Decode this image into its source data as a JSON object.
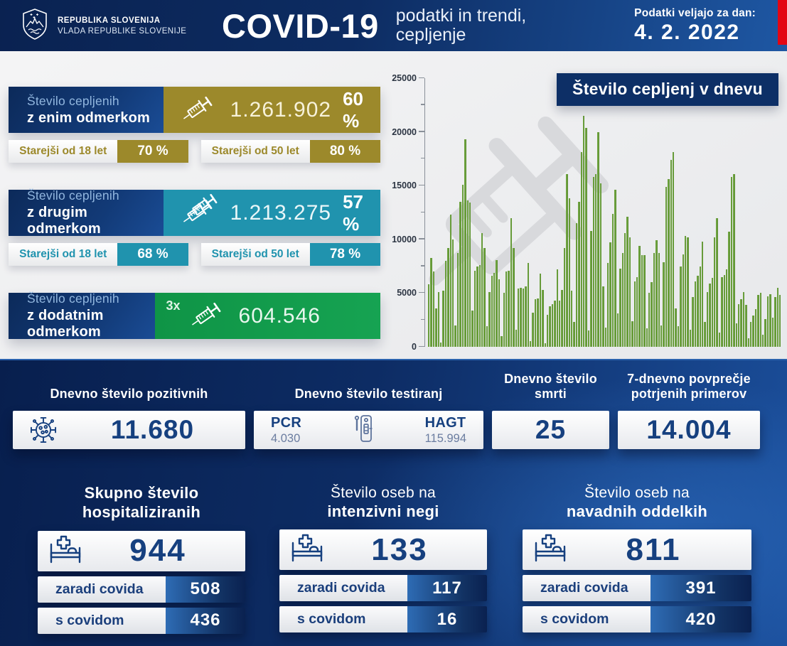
{
  "colors": {
    "navy_dark": "#0b2758",
    "navy": "#123f82",
    "blue_light": "#1b57a5",
    "gold": "#9c892b",
    "teal": "#2093ae",
    "green": "#129b48",
    "red_accent": "#e30613",
    "bar_green": "#6da23e",
    "value_navy": "#16407f"
  },
  "header": {
    "org_line1": "REPUBLIKA SLOVENIJA",
    "org_line2": "VLADA REPUBLIKE SLOVENIJE",
    "title": "COVID-19",
    "subtitle_line1": "podatki in trendi,",
    "subtitle_line2": "cepljenje",
    "date_label": "Podatki veljajo za dan:",
    "date_value": "4. 2. 2022"
  },
  "vaccination_cards": [
    {
      "label_line1": "Število cepljenih",
      "label_line2": "z enim odmerkom",
      "value": "1.261.902",
      "percent": "60 %",
      "accent_color": "#9c892b",
      "breakdown": [
        {
          "label": "Starejši od 18 let",
          "value": "70 %"
        },
        {
          "label": "Starejši od 50 let",
          "value": "80 %"
        }
      ]
    },
    {
      "label_line1": "Število cepljenih",
      "label_line2": "z drugim odmerkom",
      "value": "1.213.275",
      "percent": "57 %",
      "accent_color": "#2093ae",
      "breakdown": [
        {
          "label": "Starejši od 18 let",
          "value": "68 %"
        },
        {
          "label": "Starejši od 50 let",
          "value": "78 %"
        }
      ]
    },
    {
      "label_line1": "Število cepljenih",
      "label_line2": "z dodatnim odmerkom",
      "multiplier": "3x",
      "value": "604.546",
      "accent_color": "#129b48"
    }
  ],
  "chart_data": {
    "type": "bar",
    "title": "Število cepljenj v dnevu",
    "xlabel": "",
    "ylabel": "",
    "ylim": [
      0,
      25000
    ],
    "yticks": [
      0,
      5000,
      10000,
      15000,
      20000,
      25000
    ],
    "minor_tick_step": 2500,
    "grid": false,
    "bar_color": "#6da23e",
    "values": [
      5800,
      8300,
      7000,
      3600,
      5100,
      400,
      5200,
      8000,
      9200,
      12300,
      10000,
      2000,
      8700,
      13500,
      15100,
      19300,
      13600,
      13400,
      3400,
      7100,
      7500,
      7600,
      10600,
      9200,
      1900,
      5100,
      6600,
      6900,
      8100,
      6300,
      1000,
      5000,
      7000,
      7100,
      12000,
      9200,
      1600,
      5400,
      5500,
      5400,
      5600,
      7800,
      500,
      3200,
      4400,
      4500,
      6800,
      5300,
      300,
      3000,
      3800,
      4000,
      4300,
      7200,
      4300,
      5300,
      9200,
      16100,
      13800,
      5200,
      2300,
      11500,
      13500,
      18100,
      21500,
      20400,
      1500,
      10800,
      15800,
      16100,
      20000,
      15200,
      5600,
      1800,
      7800,
      9700,
      12400,
      14600,
      3100,
      7300,
      8700,
      10600,
      12100,
      10200,
      2400,
      6100,
      6500,
      9400,
      8500,
      8500,
      1700,
      5000,
      6000,
      8700,
      9900,
      8700,
      2000,
      7900,
      14900,
      15600,
      17400,
      18100,
      3600,
      1900,
      7500,
      8600,
      10300,
      10200,
      1600,
      4600,
      6100,
      6600,
      7500,
      9800,
      2300,
      5100,
      5900,
      6400,
      10200,
      12000,
      1300,
      6500,
      6700,
      7200,
      10700,
      15800,
      16100,
      2200,
      4000,
      4400,
      5100,
      3900,
      800,
      2300,
      2900,
      3500,
      4800,
      5000,
      1100,
      2600,
      4700,
      4900,
      2700,
      4600,
      5500,
      4800
    ]
  },
  "daily_stats": {
    "positives": {
      "heading": "Dnevno število pozitivnih",
      "value": "11.680"
    },
    "tests": {
      "heading": "Dnevno število testiranj",
      "pcr_label": "PCR",
      "pcr_value": "4.030",
      "hagt_label": "HAGT",
      "hagt_value": "115.994"
    },
    "deaths": {
      "heading": "Dnevno število smrti",
      "value": "25"
    },
    "avg7": {
      "heading_line1": "7-dnevno povprečje",
      "heading_line2": "potrjenih primerov",
      "value": "14.004"
    }
  },
  "hospital": {
    "blocks": [
      {
        "title_line1": "Skupno število",
        "title_line2": "hospitaliziranih",
        "total": "944",
        "rows": [
          {
            "label": "zaradi covida",
            "value": "508"
          },
          {
            "label": "s covidom",
            "value": "436"
          }
        ]
      },
      {
        "title_line1": "Število oseb na",
        "title_line2": "intenzivni negi",
        "total": "133",
        "rows": [
          {
            "label": "zaradi covida",
            "value": "117"
          },
          {
            "label": "s covidom",
            "value": "16"
          }
        ]
      },
      {
        "title_line1": "Število oseb na",
        "title_line2": "navadnih oddelkih",
        "total": "811",
        "rows": [
          {
            "label": "zaradi covida",
            "value": "391"
          },
          {
            "label": "s covidom",
            "value": "420"
          }
        ]
      }
    ]
  }
}
